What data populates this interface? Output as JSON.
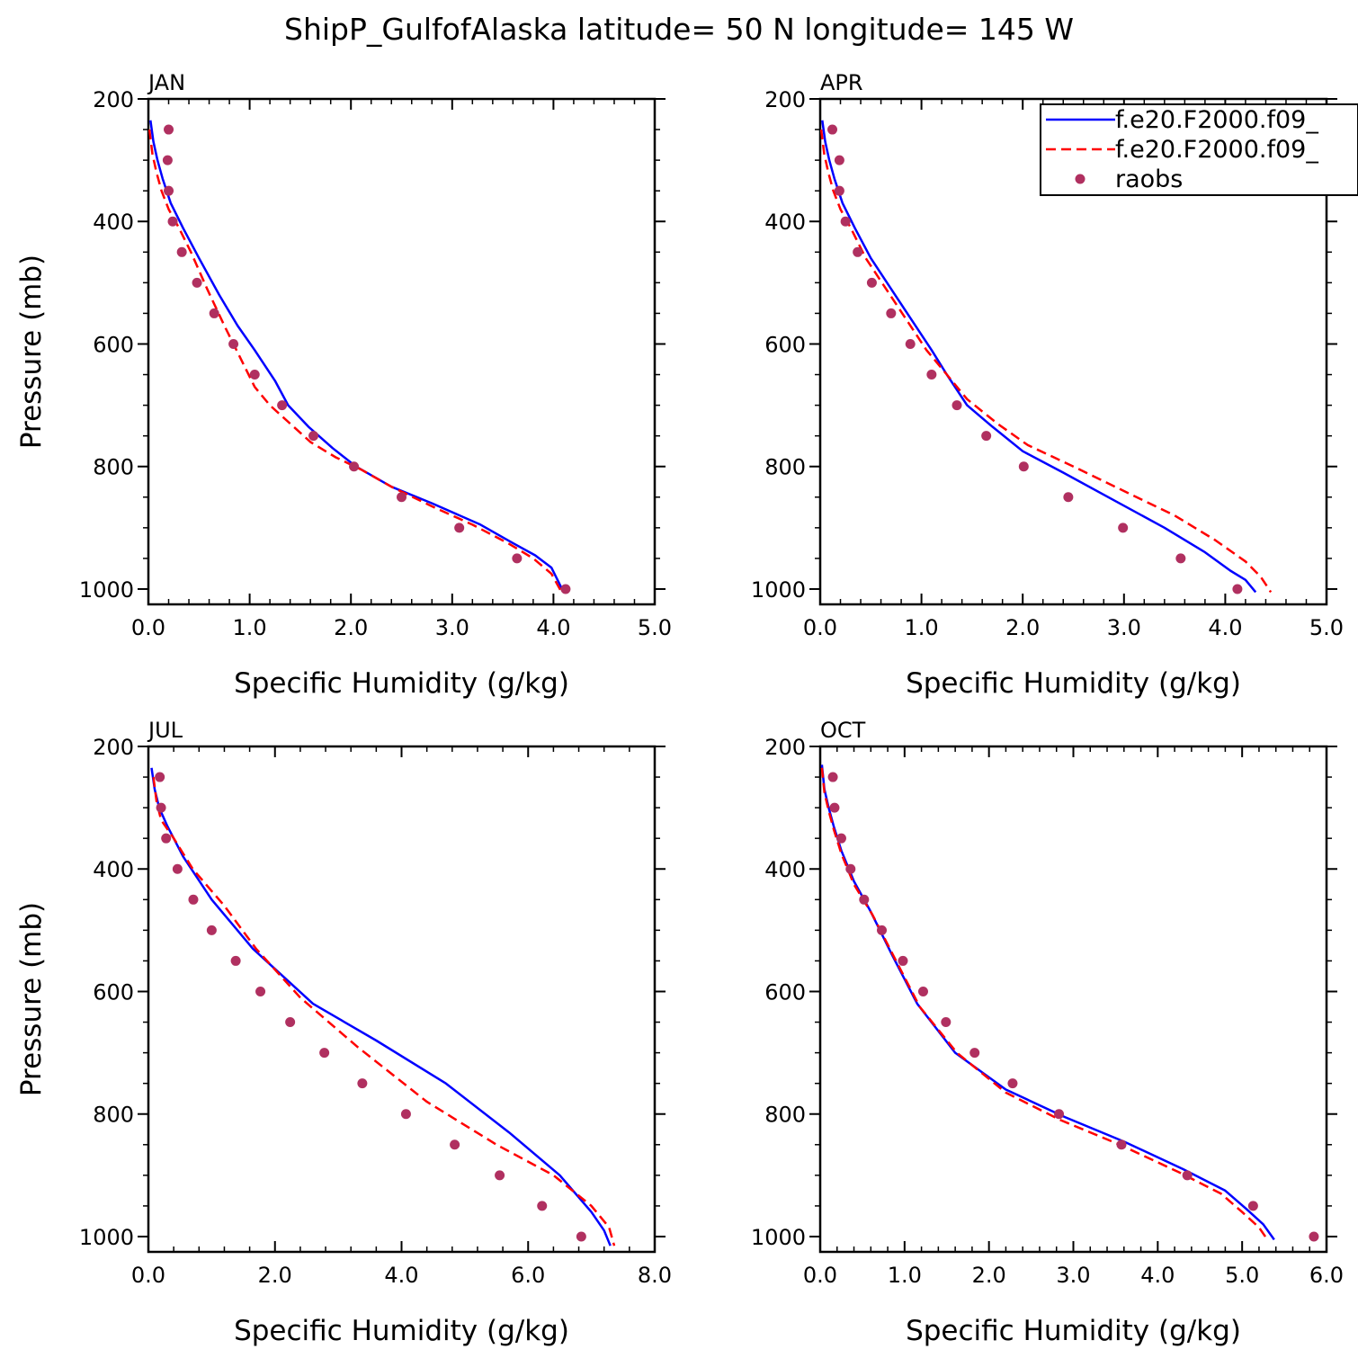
{
  "title": "ShipP_GulfofAlaska  latitude= 50 N longitude= 145 W",
  "colors": {
    "model1": "#0000ff",
    "model2": "#ff0000",
    "obs": "#b03060"
  },
  "legend": {
    "placement": "top-right of APR panel",
    "entries": [
      {
        "label": "f.e20.F2000.f09_",
        "style": "solid-line",
        "color": "#0000ff"
      },
      {
        "label": "f.e20.F2000.f09_",
        "style": "dashed-line",
        "color": "#ff0000"
      },
      {
        "label": "raobs",
        "style": "marker",
        "color": "#b03060"
      }
    ]
  },
  "chart_data": [
    {
      "type": "line",
      "month": "JAN",
      "xlabel": "Specific Humidity (g/kg)",
      "ylabel": "Pressure (mb)",
      "xlim": [
        0,
        5
      ],
      "ylim": [
        200,
        1025
      ],
      "y_inverted": true,
      "xticks": [
        "0.0",
        "1.0",
        "2.0",
        "3.0",
        "4.0",
        "5.0"
      ],
      "yticks": [
        "200",
        "400",
        "600",
        "800",
        "1000"
      ],
      "series": [
        {
          "kind": "solid",
          "x": [
            0.02,
            0.05,
            0.09,
            0.14,
            0.22,
            0.34,
            0.5,
            0.7,
            0.88,
            1.05,
            1.25,
            1.38,
            1.58,
            1.82,
            2.05,
            2.4,
            2.8,
            3.28,
            3.6,
            3.82,
            3.98,
            4.1
          ],
          "y": [
            235,
            270,
            300,
            330,
            370,
            410,
            460,
            520,
            570,
            610,
            660,
            700,
            735,
            770,
            800,
            833,
            860,
            895,
            925,
            945,
            965,
            1005
          ]
        },
        {
          "kind": "dashed",
          "x": [
            0.01,
            0.04,
            0.08,
            0.13,
            0.2,
            0.3,
            0.42,
            0.58,
            0.75,
            0.9,
            1.05,
            1.2,
            1.4,
            1.6,
            1.85,
            2.1,
            2.4,
            2.8,
            3.2,
            3.55,
            3.8,
            3.98,
            4.08
          ],
          "y": [
            250,
            290,
            320,
            350,
            380,
            410,
            450,
            510,
            570,
            620,
            670,
            700,
            730,
            760,
            785,
            805,
            833,
            865,
            895,
            925,
            950,
            975,
            1005
          ]
        },
        {
          "kind": "obs",
          "x": [
            0.2,
            0.19,
            0.2,
            0.24,
            0.33,
            0.48,
            0.65,
            0.84,
            1.05,
            1.32,
            1.63,
            2.03,
            2.5,
            3.07,
            3.64,
            4.12
          ],
          "y": [
            250,
            300,
            350,
            400,
            450,
            500,
            550,
            600,
            650,
            700,
            750,
            800,
            850,
            900,
            950,
            1000
          ]
        }
      ]
    },
    {
      "type": "line",
      "month": "APR",
      "xlabel": "Specific Humidity (g/kg)",
      "ylabel": "",
      "xlim": [
        0,
        5
      ],
      "ylim": [
        200,
        1025
      ],
      "y_inverted": true,
      "xticks": [
        "0.0",
        "1.0",
        "2.0",
        "3.0",
        "4.0",
        "5.0"
      ],
      "yticks": [
        "200",
        "400",
        "600",
        "800",
        "1000"
      ],
      "series": [
        {
          "kind": "solid",
          "x": [
            0.02,
            0.05,
            0.09,
            0.14,
            0.22,
            0.34,
            0.5,
            0.7,
            0.9,
            1.1,
            1.25,
            1.45,
            1.7,
            2.0,
            2.4,
            2.9,
            3.4,
            3.8,
            4.05,
            4.2,
            4.3
          ],
          "y": [
            235,
            270,
            300,
            330,
            370,
            410,
            460,
            510,
            560,
            610,
            650,
            700,
            735,
            775,
            810,
            855,
            900,
            940,
            970,
            985,
            1005
          ]
        },
        {
          "kind": "dashed",
          "x": [
            0.01,
            0.04,
            0.08,
            0.13,
            0.2,
            0.3,
            0.45,
            0.65,
            0.85,
            1.05,
            1.25,
            1.45,
            1.75,
            2.05,
            2.5,
            3.0,
            3.5,
            3.9,
            4.2,
            4.35,
            4.45
          ],
          "y": [
            250,
            290,
            320,
            350,
            380,
            410,
            460,
            510,
            560,
            610,
            650,
            690,
            730,
            765,
            800,
            840,
            880,
            920,
            955,
            980,
            1005
          ]
        },
        {
          "kind": "obs",
          "x": [
            0.12,
            0.19,
            0.19,
            0.25,
            0.37,
            0.51,
            0.7,
            0.89,
            1.1,
            1.35,
            1.64,
            2.01,
            2.45,
            2.99,
            3.56,
            4.12
          ],
          "y": [
            250,
            300,
            350,
            400,
            450,
            500,
            550,
            600,
            650,
            700,
            750,
            800,
            850,
            900,
            950,
            1000
          ]
        }
      ]
    },
    {
      "type": "line",
      "month": "JUL",
      "xlabel": "Specific Humidity (g/kg)",
      "ylabel": "Pressure (mb)",
      "xlim": [
        0,
        8
      ],
      "ylim": [
        200,
        1025
      ],
      "y_inverted": true,
      "xticks": [
        "0.0",
        "2.0",
        "4.0",
        "6.0",
        "8.0"
      ],
      "yticks": [
        "200",
        "400",
        "600",
        "800",
        "1000"
      ],
      "series": [
        {
          "kind": "solid",
          "x": [
            0.05,
            0.1,
            0.17,
            0.3,
            0.55,
            1.0,
            1.65,
            2.6,
            3.6,
            4.7,
            5.7,
            6.5,
            7.0,
            7.2,
            7.3
          ],
          "y": [
            235,
            270,
            300,
            330,
            380,
            450,
            530,
            620,
            680,
            750,
            830,
            900,
            960,
            990,
            1015
          ]
        },
        {
          "kind": "dashed",
          "x": [
            0.08,
            0.13,
            0.2,
            0.4,
            0.7,
            1.2,
            1.7,
            2.4,
            3.3,
            4.4,
            5.5,
            6.4,
            7.0,
            7.28,
            7.36
          ],
          "y": [
            250,
            290,
            320,
            350,
            400,
            460,
            530,
            610,
            690,
            780,
            850,
            900,
            950,
            985,
            1015
          ]
        },
        {
          "kind": "obs",
          "x": [
            0.18,
            0.2,
            0.28,
            0.46,
            0.71,
            1.0,
            1.38,
            1.77,
            2.24,
            2.78,
            3.38,
            4.07,
            4.84,
            5.55,
            6.22,
            6.84
          ],
          "y": [
            250,
            300,
            350,
            400,
            450,
            500,
            550,
            600,
            650,
            700,
            750,
            800,
            850,
            900,
            950,
            1000
          ]
        }
      ]
    },
    {
      "type": "line",
      "month": "OCT",
      "xlabel": "Specific Humidity (g/kg)",
      "ylabel": "",
      "xlim": [
        0,
        6
      ],
      "ylim": [
        200,
        1025
      ],
      "y_inverted": true,
      "xticks": [
        "0.0",
        "1.0",
        "2.0",
        "3.0",
        "4.0",
        "5.0",
        "6.0"
      ],
      "yticks": [
        "200",
        "400",
        "600",
        "800",
        "1000"
      ],
      "series": [
        {
          "kind": "solid",
          "x": [
            0.02,
            0.05,
            0.1,
            0.16,
            0.25,
            0.4,
            0.6,
            0.85,
            1.15,
            1.6,
            2.2,
            2.9,
            3.6,
            4.3,
            4.8,
            5.05,
            5.25,
            5.38
          ],
          "y": [
            230,
            270,
            300,
            330,
            370,
            420,
            470,
            540,
            620,
            700,
            760,
            805,
            845,
            890,
            925,
            955,
            980,
            1005
          ]
        },
        {
          "kind": "dashed",
          "x": [
            0.02,
            0.05,
            0.1,
            0.16,
            0.25,
            0.4,
            0.62,
            0.88,
            1.18,
            1.62,
            2.2,
            2.85,
            3.55,
            4.25,
            4.75,
            5.0,
            5.2,
            5.3
          ],
          "y": [
            235,
            275,
            305,
            335,
            375,
            425,
            475,
            545,
            625,
            700,
            765,
            810,
            850,
            895,
            930,
            960,
            985,
            1005
          ]
        },
        {
          "kind": "obs",
          "x": [
            0.15,
            0.17,
            0.25,
            0.36,
            0.52,
            0.73,
            0.98,
            1.22,
            1.49,
            1.83,
            2.28,
            2.83,
            3.57,
            4.35,
            5.13,
            5.85
          ],
          "y": [
            250,
            300,
            350,
            400,
            450,
            500,
            550,
            600,
            650,
            700,
            750,
            800,
            850,
            900,
            950,
            1000
          ]
        }
      ]
    }
  ]
}
